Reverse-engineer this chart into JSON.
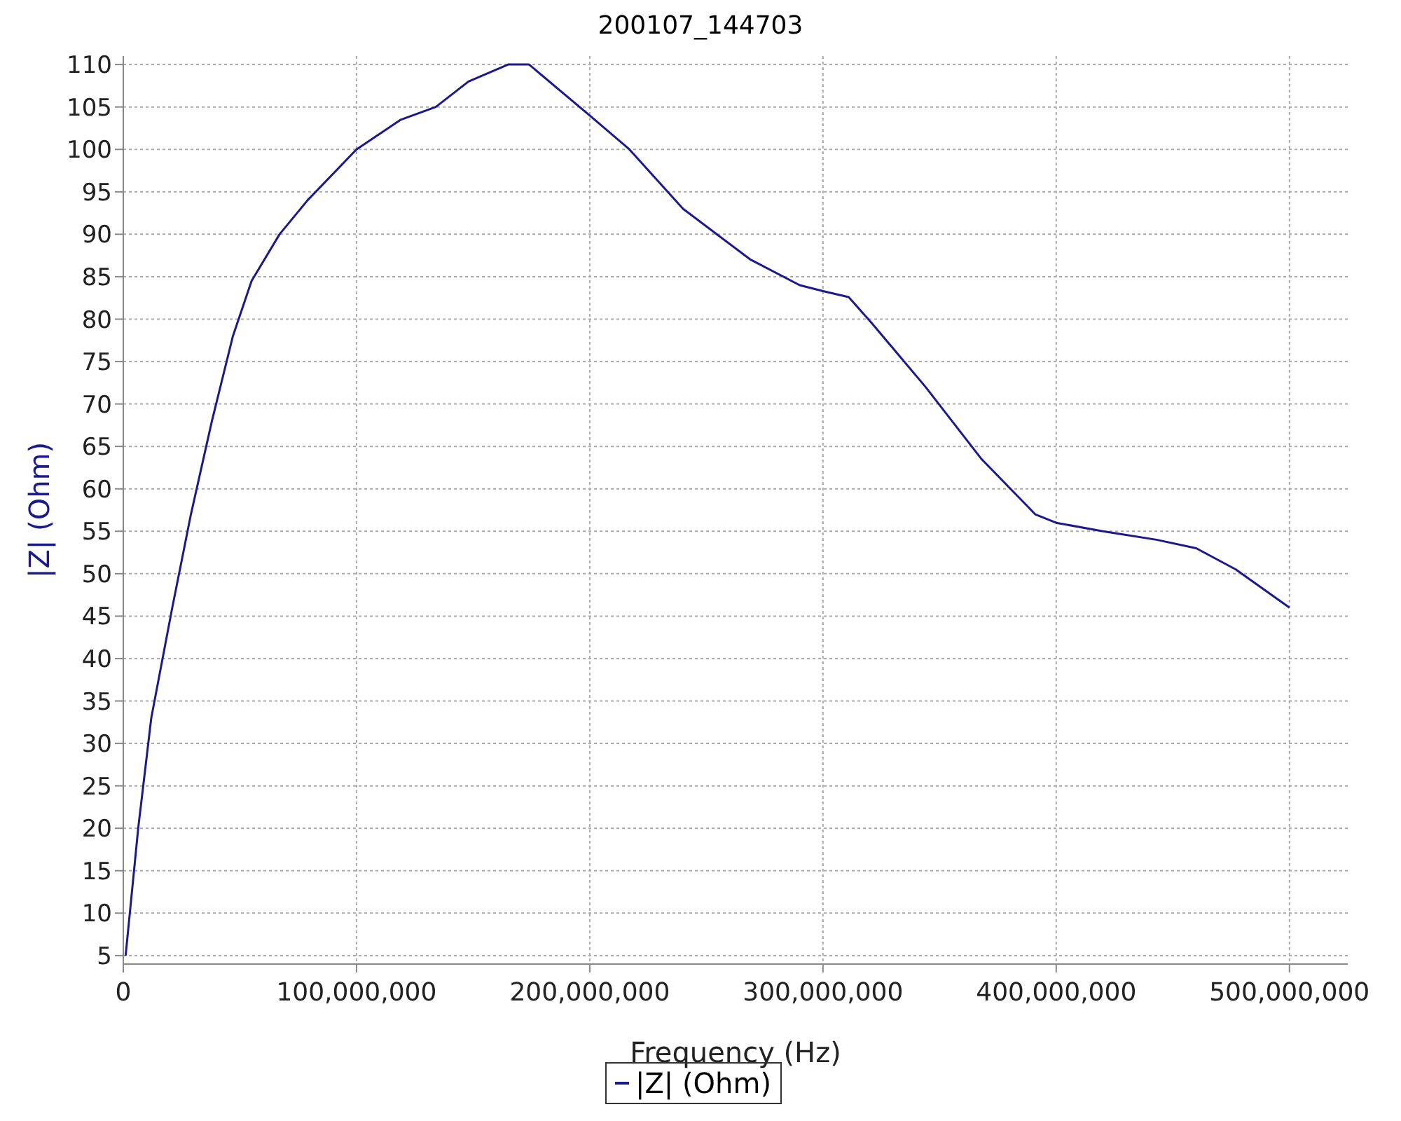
{
  "chart_data": {
    "type": "line",
    "title": "200107_144703",
    "xlabel": "Frequency (Hz)",
    "ylabel": "|Z| (Ohm)",
    "x": [
      1000000,
      6400000,
      12000000,
      21000000,
      29000000,
      38000000,
      47000000,
      55000000,
      67000000,
      79000000,
      100000000,
      119000000,
      134000000,
      148000000,
      165000000,
      174000000,
      200000000,
      217000000,
      240000000,
      269000000,
      290000000,
      300000000,
      311000000,
      321000000,
      344000000,
      368000000,
      391000000,
      400000000,
      420000000,
      443000000,
      460000000,
      477000000,
      500000000
    ],
    "series": [
      {
        "name": "|Z| (Ohm)",
        "color": "#1a1a8c",
        "values": [
          5,
          20,
          33,
          46,
          57,
          68,
          78,
          84.5,
          90,
          94,
          100,
          103.5,
          105,
          108,
          110,
          110,
          104,
          100,
          93,
          87,
          84,
          83.3,
          82.6,
          79.5,
          72,
          63.5,
          57,
          56,
          55,
          54,
          53,
          50.5,
          46
        ]
      }
    ],
    "xlim": [
      0,
      525000000
    ],
    "ylim": [
      4,
      111
    ],
    "xticks": [
      0,
      {
        "value": 100000000,
        "label": "100,000,000"
      },
      {
        "value": 200000000,
        "label": "200,000,000"
      },
      {
        "value": 300000000,
        "label": "300,000,000"
      },
      {
        "value": 400000000,
        "label": "400,000,000"
      },
      {
        "value": 500000000,
        "label": "500,000,000"
      }
    ],
    "yticks": [
      5,
      10,
      15,
      20,
      25,
      30,
      35,
      40,
      45,
      50,
      55,
      60,
      65,
      70,
      75,
      80,
      85,
      90,
      95,
      100,
      105,
      110
    ],
    "grid": true,
    "legend": "bottom",
    "marker": "none",
    "line_style": "solid"
  }
}
